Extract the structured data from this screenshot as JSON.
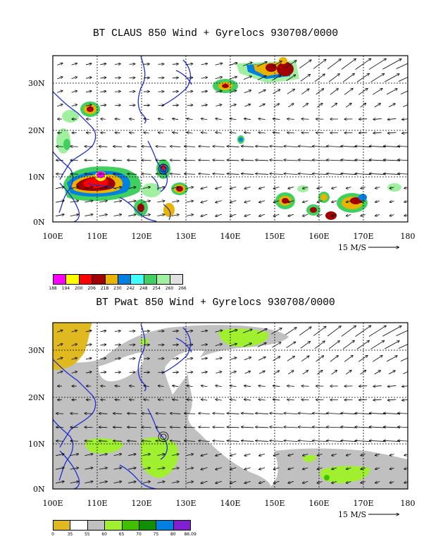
{
  "top_panel": {
    "title": "BT CLAUS 850 Wind + Gyrelocs 930708/0000",
    "lat_labels": [
      "30N",
      "20N",
      "10N",
      "0N"
    ],
    "lon_labels": [
      "100E",
      "110E",
      "120E",
      "130E",
      "140E",
      "150E",
      "160E",
      "170E",
      "180"
    ],
    "vector_scale_label": "15 M/S",
    "colorbar": {
      "colors": [
        "#ff00ff",
        "#ffff00",
        "#ff0000",
        "#a00000",
        "#e8b400",
        "#0080e0",
        "#40ffff",
        "#40d060",
        "#a0f0a0",
        "#e0e0e0"
      ],
      "labels": [
        "188",
        "194",
        "200",
        "206",
        "218",
        "230",
        "242",
        "248",
        "254",
        "260",
        "266"
      ]
    }
  },
  "bottom_panel": {
    "title": "BT Pwat 850 Wind + Gyrelocs 930708/0000",
    "lat_labels": [
      "30N",
      "20N",
      "10N",
      "0N"
    ],
    "lon_labels": [
      "100E",
      "110E",
      "120E",
      "130E",
      "140E",
      "150E",
      "160E",
      "170E",
      "180"
    ],
    "vector_scale_label": "15 M/S",
    "colorbar": {
      "colors": [
        "#e0b820",
        "#ffffff",
        "#c0c0c0",
        "#a0f030",
        "#40c000",
        "#109000",
        "#0080e0",
        "#8020d0"
      ],
      "labels": [
        "0",
        "35",
        "55",
        "60",
        "65",
        "70",
        "75",
        "80",
        "86.09"
      ]
    }
  }
}
